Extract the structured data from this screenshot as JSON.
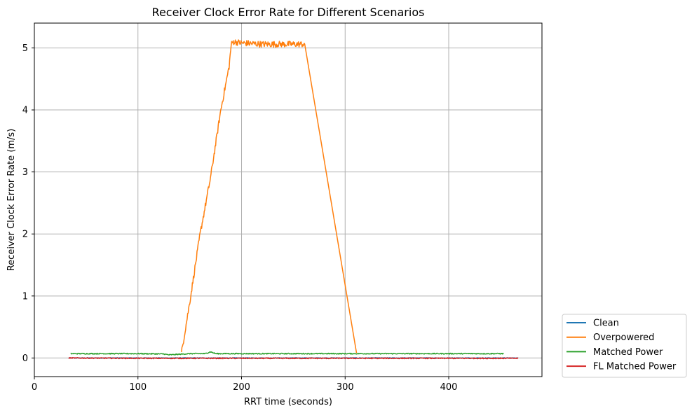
{
  "chart_data": {
    "type": "line",
    "title": "Receiver Clock Error Rate for Different Scenarios",
    "xlabel": "RRT time (seconds)",
    "ylabel": "Receiver Clock Error Rate (m/s)",
    "xlim": [
      0,
      490
    ],
    "ylim": [
      -0.3,
      5.4
    ],
    "xticks": [
      0,
      100,
      200,
      300,
      400
    ],
    "yticks": [
      0,
      1,
      2,
      3,
      4,
      5
    ],
    "grid": true,
    "legend_position": "outside-lower-right",
    "series": [
      {
        "name": "Clean",
        "color": "#1f77b4",
        "x": [
          33,
          467
        ],
        "y": [
          0.0,
          0.0
        ],
        "noise": 0.006
      },
      {
        "name": "Overpowered",
        "color": "#ff7f0e",
        "x": [
          142,
          150,
          160,
          170,
          180,
          188,
          190,
          192,
          200,
          210,
          220,
          240,
          261,
          311
        ],
        "y": [
          0.08,
          0.9,
          2.0,
          2.9,
          4.0,
          4.7,
          5.05,
          5.1,
          5.08,
          5.07,
          5.06,
          5.06,
          5.06,
          0.08
        ],
        "noise": 0.05
      },
      {
        "name": "Matched Power",
        "color": "#2ca02c",
        "x": [
          35,
          100,
          125,
          130,
          150,
          165,
          170,
          175,
          200,
          300,
          400,
          453
        ],
        "y": [
          0.07,
          0.07,
          0.065,
          0.05,
          0.07,
          0.07,
          0.1,
          0.07,
          0.07,
          0.07,
          0.07,
          0.07
        ],
        "noise": 0.008
      },
      {
        "name": "FL Matched Power",
        "color": "#d62728",
        "x": [
          33,
          100,
          200,
          300,
          400,
          467
        ],
        "y": [
          0.0,
          -0.005,
          -0.005,
          -0.005,
          -0.005,
          -0.005
        ],
        "noise": 0.008
      }
    ]
  }
}
